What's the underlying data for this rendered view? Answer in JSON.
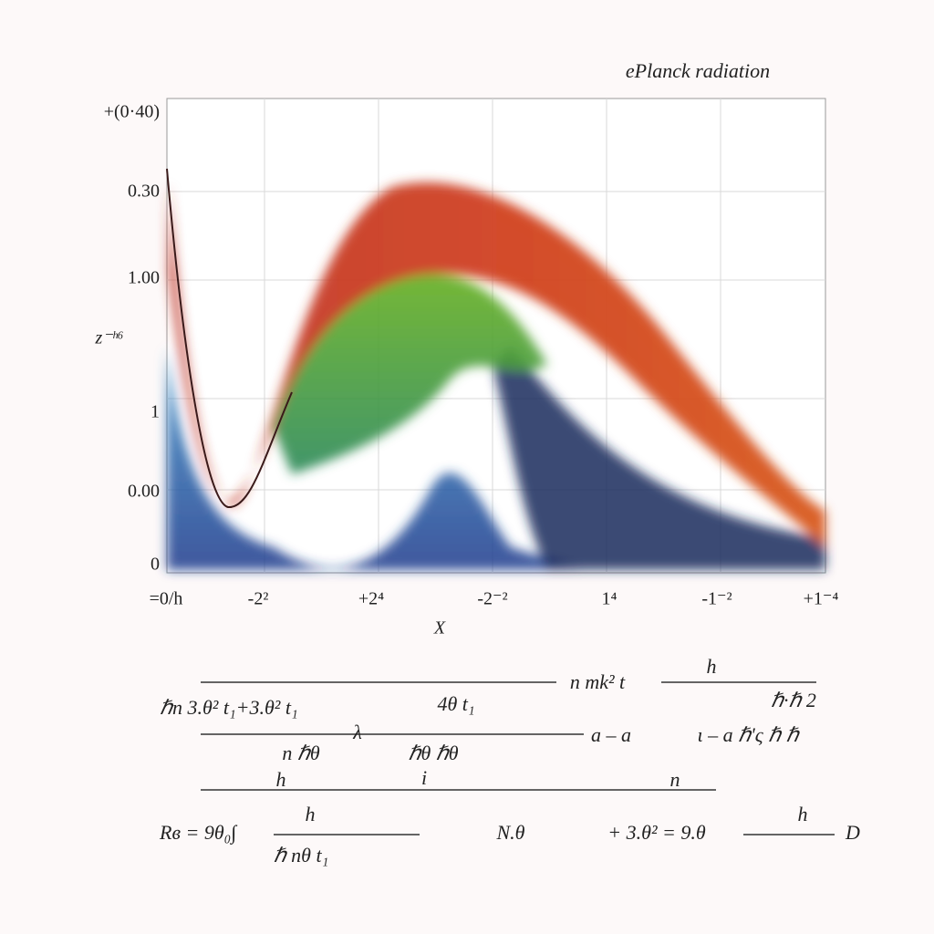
{
  "figure": {
    "title": "ePlanck radiation",
    "y_axis_label": "z⁻ʰ⁶",
    "x_axis_label": "X",
    "y_labels": [
      "+(0·40)",
      "0.30",
      "1.00",
      "1",
      "0.00",
      "0"
    ],
    "x_labels": [
      "=0/h",
      "-2²",
      "+2⁴",
      "-2⁻²",
      "1⁴",
      "-1⁻²",
      "+1⁻⁴"
    ]
  },
  "equations": {
    "line1": [
      "n mk² t",
      "h"
    ],
    "line2": [
      "ℏn 3.θ² t₁+3.θ² t₁",
      "4θ t₁",
      "ℏ·ℏ 2"
    ],
    "line3": [
      "n ℏθ",
      "λ",
      "ℏθ ℏθ",
      "a – a",
      "ɩ – a ℏ'ς ℏ ℏ"
    ],
    "line4": [
      "h",
      "i",
      "n"
    ],
    "line5": [
      "Rв = 9θ₀∫",
      "h",
      "ℏ nθ t₁",
      "N.θ",
      "+ 3.θ² = 9.θ",
      "h",
      "D"
    ]
  }
}
